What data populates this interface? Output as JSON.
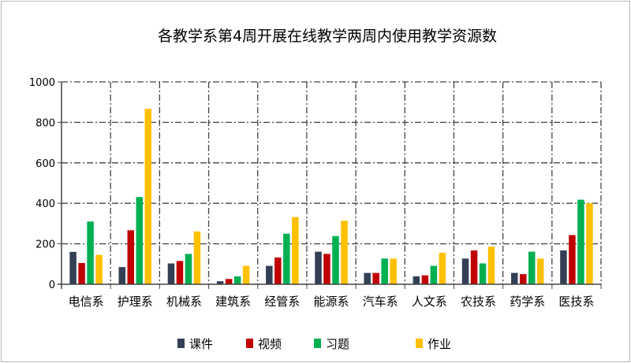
{
  "chart_data": {
    "type": "bar",
    "title": "各教学系第4周开展在线教学两周内使用教学资源数",
    "xlabel": "",
    "ylabel": "",
    "ylim": [
      0,
      1000
    ],
    "yticks": [
      0,
      200,
      400,
      600,
      800,
      1000
    ],
    "grid": true,
    "legend_position": "bottom",
    "categories": [
      "电信系",
      "护理系",
      "机械系",
      "建筑系",
      "经管系",
      "能源系",
      "汽车系",
      "人文系",
      "农技系",
      "药学系",
      "医技系"
    ],
    "series": [
      {
        "name": "课件",
        "color": "#323f55",
        "values": [
          160,
          85,
          103,
          15,
          91,
          161,
          56,
          39,
          127,
          56,
          167
        ]
      },
      {
        "name": "视频",
        "color": "#c00000",
        "values": [
          105,
          267,
          115,
          26,
          132,
          150,
          56,
          44,
          167,
          50,
          243
        ]
      },
      {
        "name": "习题",
        "color": "#00b050",
        "values": [
          310,
          431,
          150,
          39,
          250,
          238,
          127,
          91,
          103,
          161,
          418
        ]
      },
      {
        "name": "作业",
        "color": "#ffc000",
        "values": [
          145,
          867,
          261,
          91,
          332,
          314,
          127,
          156,
          186,
          127,
          400
        ]
      }
    ]
  }
}
